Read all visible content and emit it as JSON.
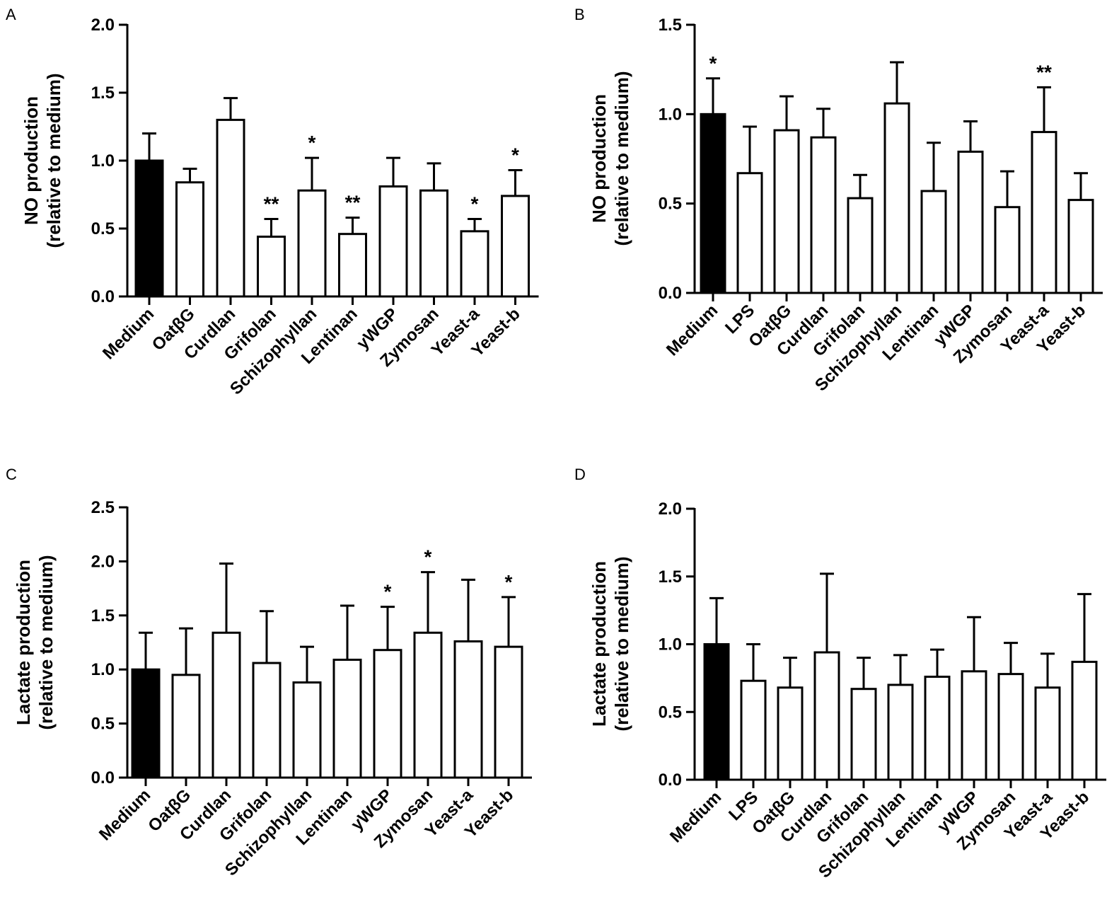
{
  "chart_data": [
    {
      "panel": "A",
      "type": "bar",
      "ylabel_line1": "NO production",
      "ylabel_line2": "(relative to medium)",
      "ylim": [
        0,
        2.0
      ],
      "yticks": [
        "0.0",
        "0.5",
        "1.0",
        "1.5",
        "2.0"
      ],
      "ytick_values": [
        0,
        0.5,
        1.0,
        1.5,
        2.0
      ],
      "categories": [
        "Medium",
        "OatβG",
        "Curdlan",
        "Grifolan",
        "Schizophyllan",
        "Lentinan",
        "yWGP",
        "Zymosan",
        "Yeast-a",
        "Yeast-b"
      ],
      "values": [
        1.0,
        0.84,
        1.3,
        0.44,
        0.78,
        0.46,
        0.81,
        0.78,
        0.48,
        0.74
      ],
      "errors": [
        0.2,
        0.1,
        0.16,
        0.13,
        0.24,
        0.12,
        0.21,
        0.2,
        0.09,
        0.19
      ],
      "significance": [
        "",
        "",
        "",
        "**",
        "*",
        "**",
        "",
        "",
        "*",
        "*"
      ],
      "fills": [
        "#000000",
        "#ffffff",
        "#ffffff",
        "#ffffff",
        "#ffffff",
        "#ffffff",
        "#ffffff",
        "#ffffff",
        "#ffffff",
        "#ffffff"
      ]
    },
    {
      "panel": "B",
      "type": "bar",
      "ylabel_line1": "NO production",
      "ylabel_line2": "(relative to medium)",
      "ylim": [
        0,
        1.5
      ],
      "yticks": [
        "0.0",
        "0.5",
        "1.0",
        "1.5"
      ],
      "ytick_values": [
        0,
        0.5,
        1.0,
        1.5
      ],
      "categories": [
        "Medium",
        "LPS",
        "OatβG",
        "Curdlan",
        "Grifolan",
        "Schizophyllan",
        "Lentinan",
        "yWGP",
        "Zymosan",
        "Yeast-a",
        "Yeast-b"
      ],
      "values": [
        1.0,
        0.67,
        0.91,
        0.87,
        0.53,
        1.06,
        0.57,
        0.79,
        0.48,
        0.9,
        0.52
      ],
      "errors": [
        0.2,
        0.26,
        0.19,
        0.16,
        0.13,
        0.23,
        0.27,
        0.17,
        0.2,
        0.25,
        0.15
      ],
      "significance": [
        "*",
        "",
        "",
        "",
        "",
        "",
        "",
        "",
        "",
        "**",
        ""
      ],
      "fills": [
        "#000000",
        "#ffffff",
        "#ffffff",
        "#ffffff",
        "#ffffff",
        "#ffffff",
        "#ffffff",
        "#ffffff",
        "#ffffff",
        "#ffffff",
        "#ffffff"
      ]
    },
    {
      "panel": "C",
      "type": "bar",
      "ylabel_line1": "Lactate production",
      "ylabel_line2": "(relative to medium)",
      "ylim": [
        0,
        2.5
      ],
      "yticks": [
        "0.0",
        "0.5",
        "1.0",
        "1.5",
        "2.0",
        "2.5"
      ],
      "ytick_values": [
        0,
        0.5,
        1.0,
        1.5,
        2.0,
        2.5
      ],
      "categories": [
        "Medium",
        "OatβG",
        "Curdlan",
        "Grifolan",
        "Schizophyllan",
        "Lentinan",
        "yWGP",
        "Zymosan",
        "Yeast-a",
        "Yeast-b"
      ],
      "values": [
        1.0,
        0.95,
        1.34,
        1.06,
        0.88,
        1.09,
        1.18,
        1.34,
        1.26,
        1.21
      ],
      "errors": [
        0.34,
        0.43,
        0.64,
        0.48,
        0.33,
        0.5,
        0.4,
        0.56,
        0.57,
        0.46
      ],
      "significance": [
        "",
        "",
        "",
        "",
        "",
        "",
        "*",
        "*",
        "",
        "*"
      ],
      "fills": [
        "#000000",
        "#ffffff",
        "#ffffff",
        "#ffffff",
        "#ffffff",
        "#ffffff",
        "#ffffff",
        "#ffffff",
        "#ffffff",
        "#ffffff"
      ]
    },
    {
      "panel": "D",
      "type": "bar",
      "ylabel_line1": "Lactate production",
      "ylabel_line2": "(relative to medium)",
      "ylim": [
        0,
        2.0
      ],
      "yticks": [
        "0.0",
        "0.5",
        "1.0",
        "1.5",
        "2.0"
      ],
      "ytick_values": [
        0,
        0.5,
        1.0,
        1.5,
        2.0
      ],
      "categories": [
        "Medium",
        "LPS",
        "OatβG",
        "Curdlan",
        "Grifolan",
        "Schizophyllan",
        "Lentinan",
        "yWGP",
        "Zymosan",
        "Yeast-a",
        "Yeast-b"
      ],
      "values": [
        1.0,
        0.73,
        0.68,
        0.94,
        0.67,
        0.7,
        0.76,
        0.8,
        0.78,
        0.68,
        0.87
      ],
      "errors": [
        0.34,
        0.27,
        0.22,
        0.58,
        0.23,
        0.22,
        0.2,
        0.4,
        0.23,
        0.25,
        0.5
      ],
      "significance": [
        "",
        "",
        "",
        "",
        "",
        "",
        "",
        "",
        "",
        "",
        ""
      ],
      "fills": [
        "#000000",
        "#ffffff",
        "#ffffff",
        "#ffffff",
        "#ffffff",
        "#ffffff",
        "#ffffff",
        "#ffffff",
        "#ffffff",
        "#ffffff",
        "#ffffff"
      ]
    }
  ]
}
